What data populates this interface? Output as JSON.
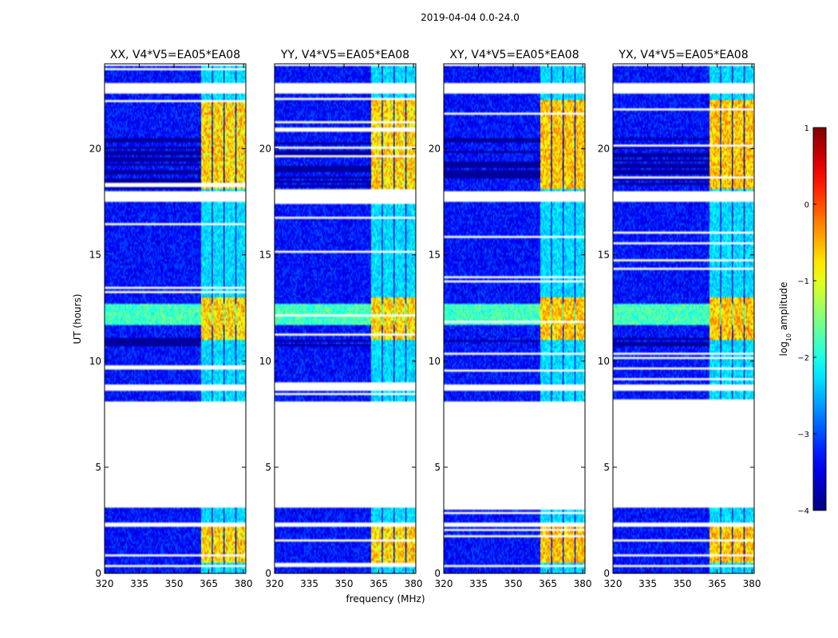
{
  "figure": {
    "suptitle": "2019-04-04 0.0-24.0"
  },
  "chart_data": {
    "type": "heatmap",
    "xlabel": "frequency (MHz)",
    "ylabel": "UT (hours)",
    "xlim": [
      320,
      381
    ],
    "ylim": [
      0,
      24
    ],
    "xticks": [
      320,
      335,
      350,
      365,
      380
    ],
    "yticks": [
      0,
      5,
      10,
      15,
      20
    ],
    "colormap": "jet",
    "colorbar": {
      "label_prefix": "log",
      "label_sub": "10",
      "label_suffix": " amplitude",
      "range": [
        -4,
        1
      ],
      "ticks": [
        1,
        0,
        -1,
        -2,
        -3,
        -4
      ],
      "tick_labels": [
        "1",
        "0",
        "−1",
        "−2",
        "−3",
        "−4"
      ]
    },
    "panels": [
      {
        "title": "XX, V4*V5=EA05*EA08",
        "pol": "XX"
      },
      {
        "title": "YY, V4*V5=EA05*EA08",
        "pol": "YY"
      },
      {
        "title": "XY, V4*V5=EA05*EA08",
        "pol": "XY"
      },
      {
        "title": "YX, V4*V5=EA05*EA08",
        "pol": "YX"
      }
    ],
    "data_gaps_hours": [
      [
        0.3,
        0.42
      ],
      [
        2.25,
        2.42
      ],
      [
        3.1,
        8.1
      ],
      [
        8.65,
        8.9
      ],
      [
        17.5,
        18.0
      ],
      [
        22.6,
        23.1
      ],
      [
        23.9,
        24.0
      ]
    ],
    "rfi_band_mhz": [
      361,
      381
    ],
    "rfi_channels_mhz": [
      364,
      369,
      374,
      379
    ],
    "strong_rfi_hours": [
      [
        0.5,
        2.25
      ],
      [
        11.0,
        13.0
      ],
      [
        18.1,
        22.3
      ]
    ],
    "bright_horizontal_hours": [
      [
        11.7,
        12.7
      ]
    ],
    "typical_background_log10": -3.3
  }
}
